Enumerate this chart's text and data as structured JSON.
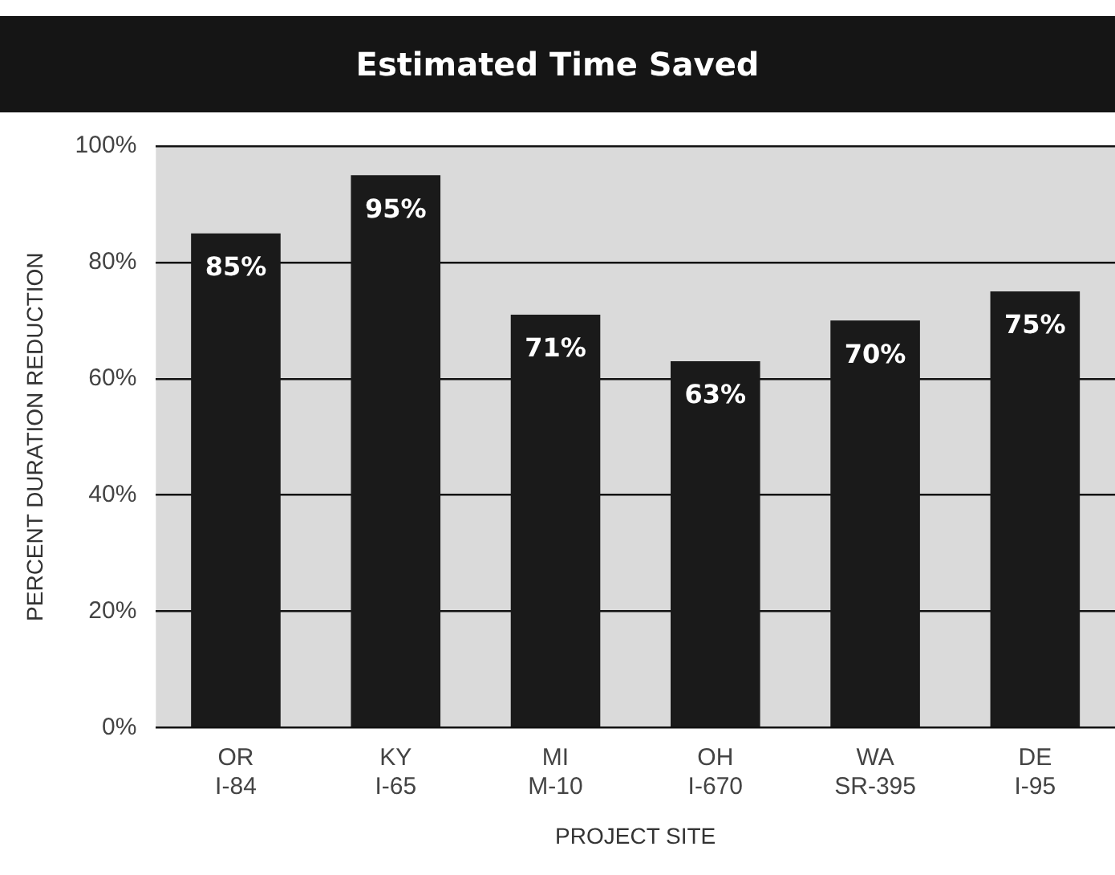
{
  "chart_data": {
    "type": "bar",
    "title": "Estimated Time Saved",
    "xlabel": "PROJECT SITE",
    "ylabel": "PERCENT DURATION REDUCTION",
    "categories": [
      "OR\nI-84",
      "KY\nI-65",
      "MI\nM-10",
      "OH\nI-670",
      "WA\nSR-395",
      "DE\nI-95"
    ],
    "values": [
      85,
      95,
      71,
      63,
      70,
      75
    ],
    "color": "#1a1a1a",
    "value_labels": [
      "85%",
      "95%",
      "71%",
      "63%",
      "70%",
      "75%"
    ],
    "ylim": [
      0,
      100
    ],
    "yticks": [
      {
        "value": 0,
        "label": "0%"
      },
      {
        "value": 20,
        "label": "20%"
      },
      {
        "value": 40,
        "label": "40%"
      },
      {
        "value": 60,
        "label": "60%"
      },
      {
        "value": 80,
        "label": "80%"
      },
      {
        "value": 100,
        "label": "100%"
      }
    ],
    "grid": "y",
    "legend": false
  }
}
